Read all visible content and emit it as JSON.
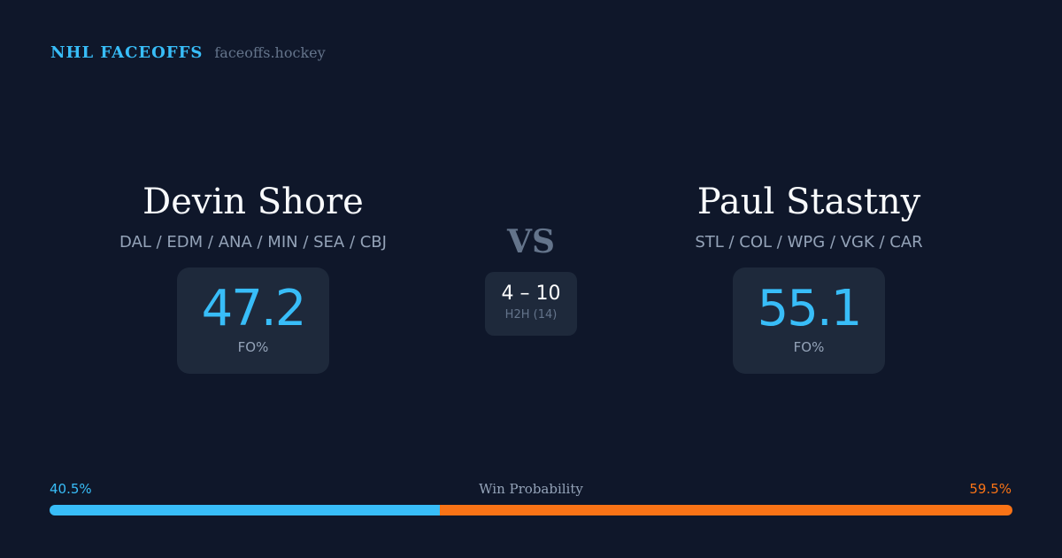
{
  "brand": {
    "title": "NHL FACEOFFS",
    "domain": "faceoffs.hockey"
  },
  "left": {
    "name": "Devin Shore",
    "teams": "DAL / EDM / ANA / MIN / SEA / CBJ",
    "fo": "47.2",
    "fo_label": "FO%"
  },
  "right": {
    "name": "Paul Stastny",
    "teams": "STL / COL / WPG / VGK / CAR",
    "fo": "55.1",
    "fo_label": "FO%"
  },
  "vs": "VS",
  "h2h": {
    "score": "4 – 10",
    "label": "H2H (14)"
  },
  "win": {
    "label": "Win Probability",
    "left": "40.5%",
    "right": "59.5%",
    "left_value": 40.5,
    "right_value": 59.5,
    "left_color": "#38bdf8",
    "right_color": "#f97316"
  }
}
